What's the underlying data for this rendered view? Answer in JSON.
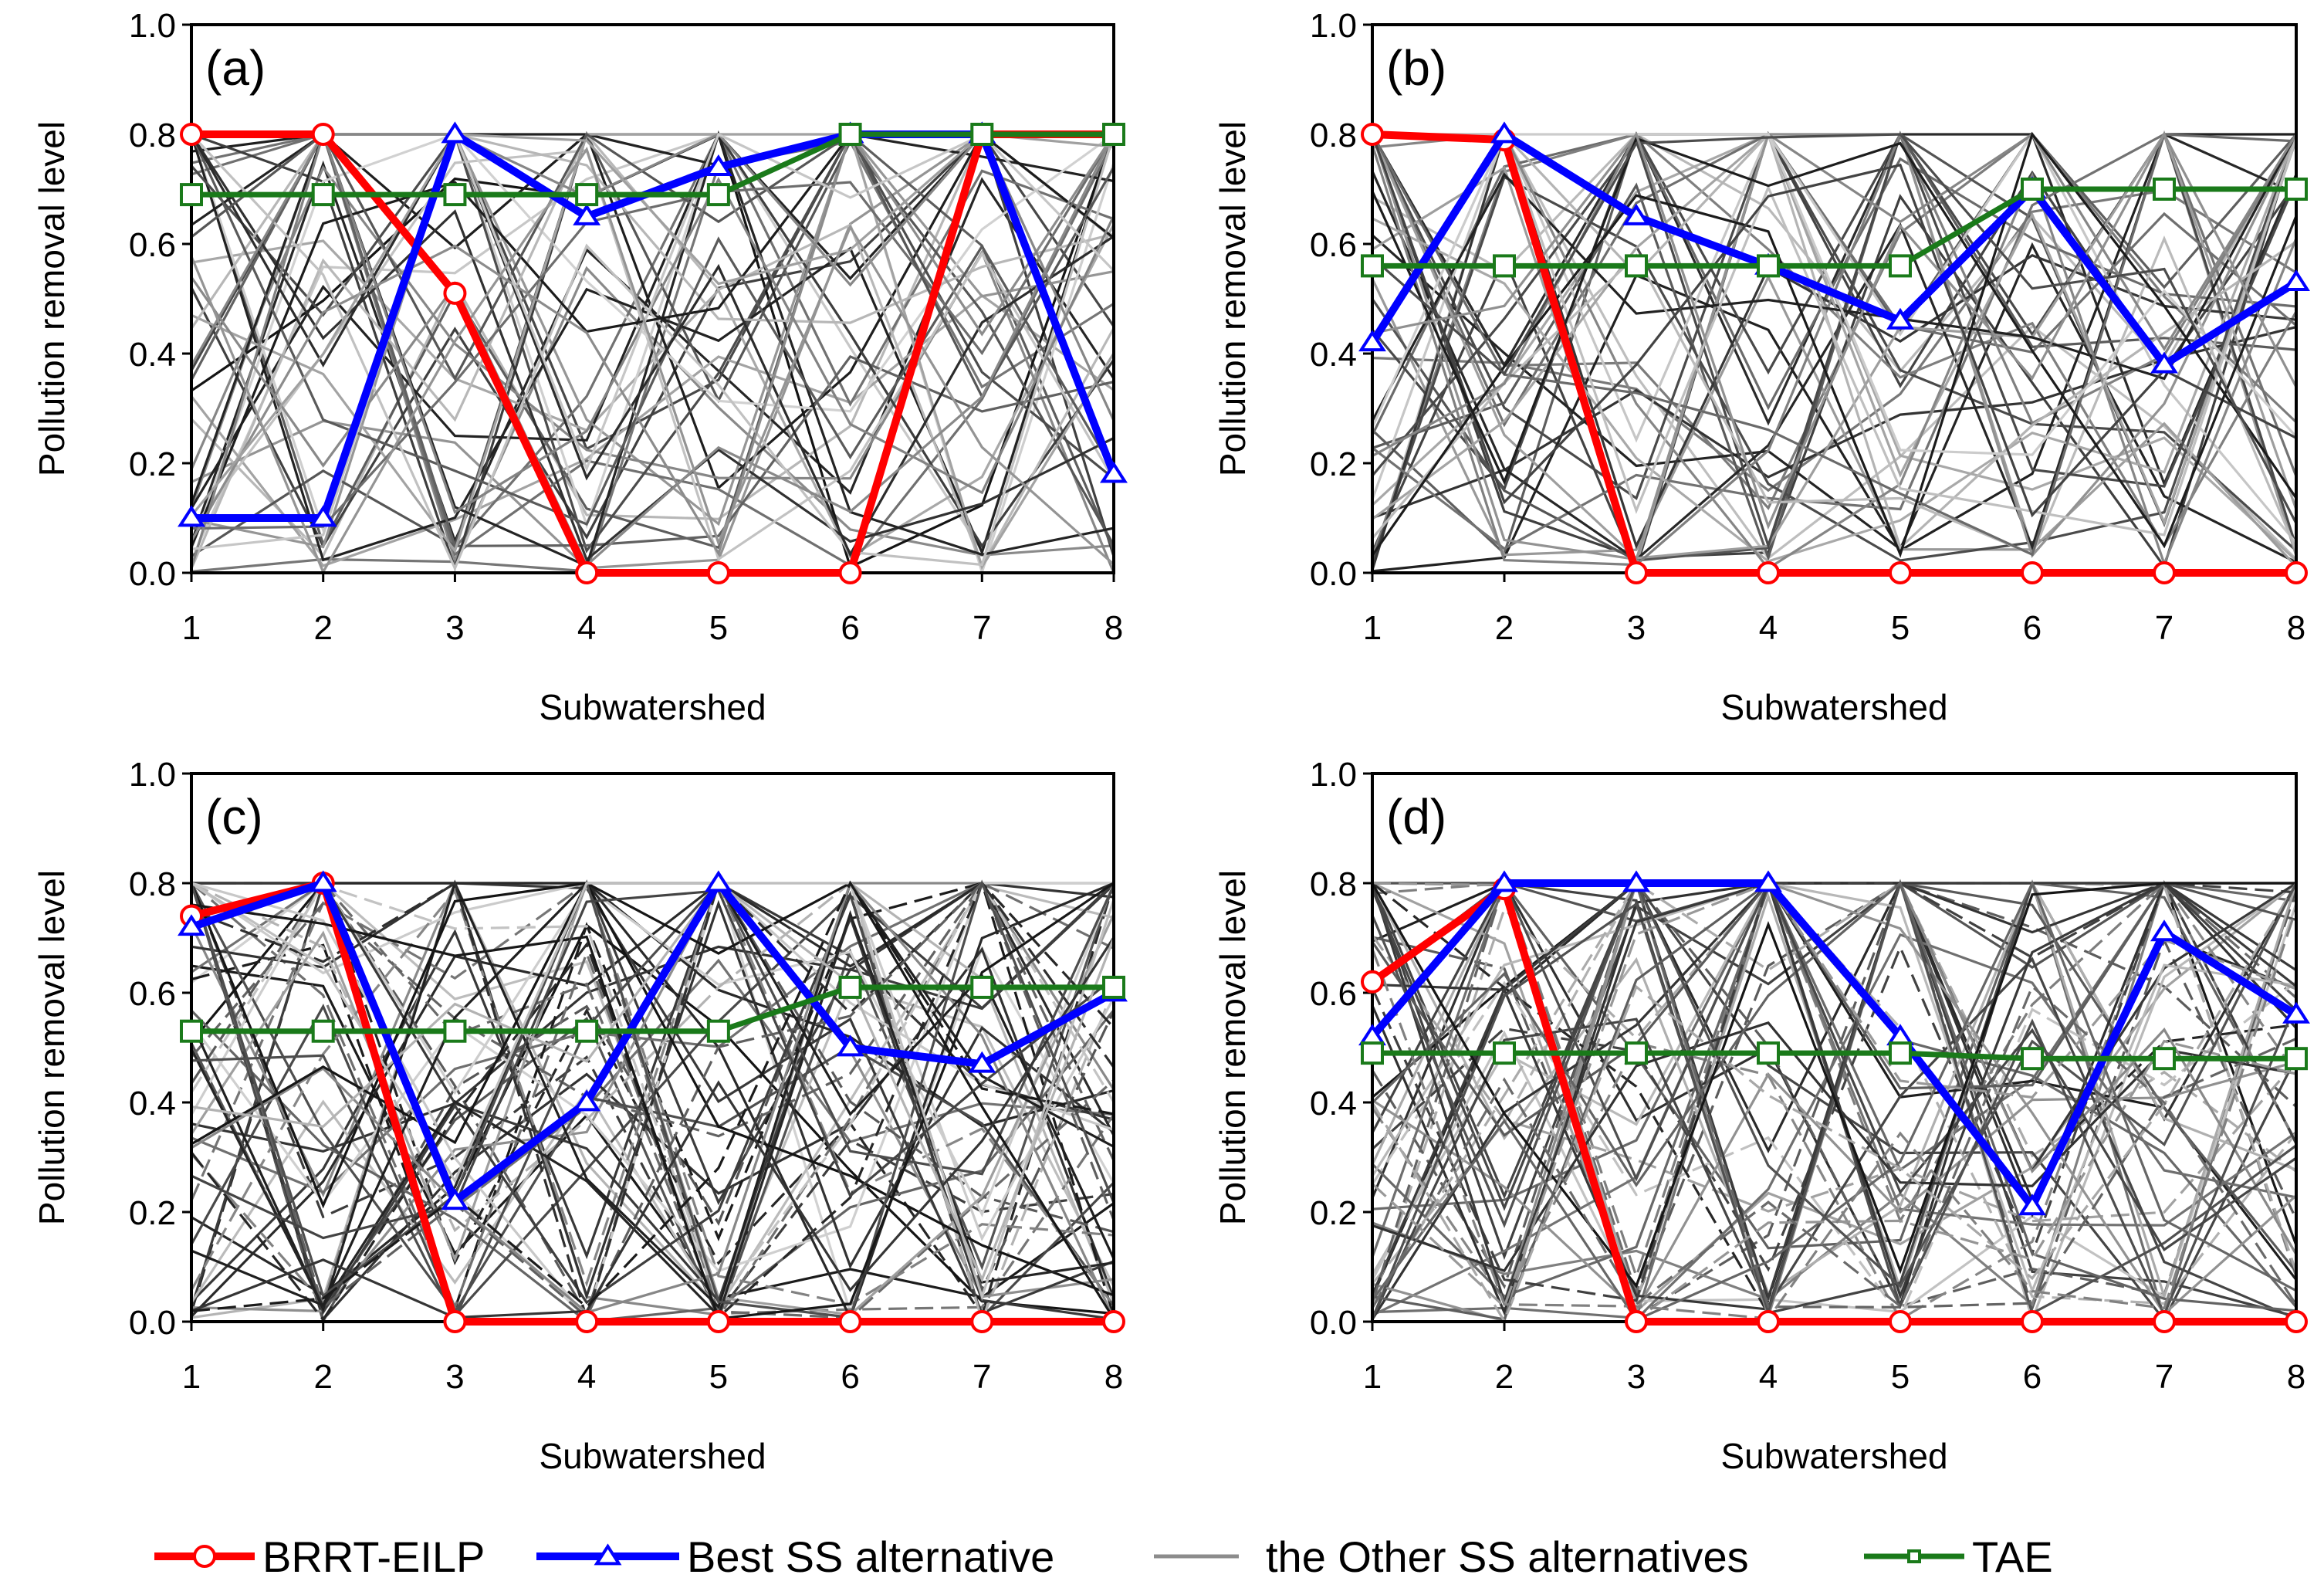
{
  "figure": {
    "legend": [
      {
        "label": "BRRT-EILP",
        "color": "#ff0000",
        "marker": "circle"
      },
      {
        "label": "Best SS alternative",
        "color": "#0000ff",
        "marker": "triangle"
      },
      {
        "label": "the Other SS alternatives",
        "color": "#8c8c8c",
        "marker": "none"
      },
      {
        "label": "TAE",
        "color": "#1a7a1a",
        "marker": "square"
      }
    ]
  },
  "chart_data": [
    {
      "panel": "(a)",
      "type": "line",
      "xlabel": "Subwatershed",
      "ylabel": "Pollution removal level",
      "x": [
        1,
        2,
        3,
        4,
        5,
        6,
        7,
        8
      ],
      "xticks": [
        "1",
        "2",
        "3",
        "4",
        "5",
        "6",
        "7",
        "8"
      ],
      "yticks": [
        "0.0",
        "0.2",
        "0.4",
        "0.6",
        "0.8",
        "1.0"
      ],
      "ylim": [
        0,
        1
      ],
      "series": [
        {
          "name": "BRRT-EILP",
          "values": [
            0.8,
            0.8,
            0.51,
            0.0,
            0.0,
            0.0,
            0.8,
            0.8
          ]
        },
        {
          "name": "Best SS alternative",
          "values": [
            0.1,
            0.1,
            0.8,
            0.65,
            0.74,
            0.8,
            0.8,
            0.18
          ]
        },
        {
          "name": "TAE",
          "values": [
            0.69,
            0.69,
            0.69,
            0.69,
            0.69,
            0.8,
            0.8,
            0.8
          ]
        }
      ],
      "other_alternatives_count": 45
    },
    {
      "panel": "(b)",
      "type": "line",
      "xlabel": "Subwatershed",
      "ylabel": "Pollution removal level",
      "x": [
        1,
        2,
        3,
        4,
        5,
        6,
        7,
        8
      ],
      "xticks": [
        "1",
        "2",
        "3",
        "4",
        "5",
        "6",
        "7",
        "8"
      ],
      "yticks": [
        "0.0",
        "0.2",
        "0.4",
        "0.6",
        "0.8",
        "1.0"
      ],
      "ylim": [
        0,
        1
      ],
      "series": [
        {
          "name": "BRRT-EILP",
          "values": [
            0.8,
            0.79,
            0.0,
            0.0,
            0.0,
            0.0,
            0.0,
            0.0
          ]
        },
        {
          "name": "Best SS alternative",
          "values": [
            0.42,
            0.8,
            0.65,
            0.56,
            0.46,
            0.7,
            0.38,
            0.53
          ]
        },
        {
          "name": "TAE",
          "values": [
            0.56,
            0.56,
            0.56,
            0.56,
            0.56,
            0.7,
            0.7,
            0.7
          ]
        }
      ],
      "other_alternatives_count": 45
    },
    {
      "panel": "(c)",
      "type": "line",
      "xlabel": "Subwatershed",
      "ylabel": "Pollution removal level",
      "x": [
        1,
        2,
        3,
        4,
        5,
        6,
        7,
        8
      ],
      "xticks": [
        "1",
        "2",
        "3",
        "4",
        "5",
        "6",
        "7",
        "8"
      ],
      "yticks": [
        "0.0",
        "0.2",
        "0.4",
        "0.6",
        "0.8",
        "1.0"
      ],
      "ylim": [
        0,
        1
      ],
      "series": [
        {
          "name": "BRRT-EILP",
          "values": [
            0.74,
            0.8,
            0.0,
            0.0,
            0.0,
            0.0,
            0.0,
            0.0
          ]
        },
        {
          "name": "Best SS alternative",
          "values": [
            0.72,
            0.8,
            0.22,
            0.4,
            0.8,
            0.5,
            0.47,
            0.6
          ]
        },
        {
          "name": "TAE",
          "values": [
            0.53,
            0.53,
            0.53,
            0.53,
            0.53,
            0.61,
            0.61,
            0.61
          ]
        }
      ],
      "other_alternatives_count": 60
    },
    {
      "panel": "(d)",
      "type": "line",
      "xlabel": "Subwatershed",
      "ylabel": "Pollution removal level",
      "x": [
        1,
        2,
        3,
        4,
        5,
        6,
        7,
        8
      ],
      "xticks": [
        "1",
        "2",
        "3",
        "4",
        "5",
        "6",
        "7",
        "8"
      ],
      "yticks": [
        "0.0",
        "0.2",
        "0.4",
        "0.6",
        "0.8",
        "1.0"
      ],
      "ylim": [
        0,
        1
      ],
      "series": [
        {
          "name": "BRRT-EILP",
          "values": [
            0.62,
            0.79,
            0.0,
            0.0,
            0.0,
            0.0,
            0.0,
            0.0
          ]
        },
        {
          "name": "Best SS alternative",
          "values": [
            0.52,
            0.8,
            0.8,
            0.8,
            0.52,
            0.21,
            0.71,
            0.56
          ]
        },
        {
          "name": "TAE",
          "values": [
            0.49,
            0.49,
            0.49,
            0.49,
            0.49,
            0.48,
            0.48,
            0.48
          ]
        }
      ],
      "other_alternatives_count": 60
    }
  ]
}
